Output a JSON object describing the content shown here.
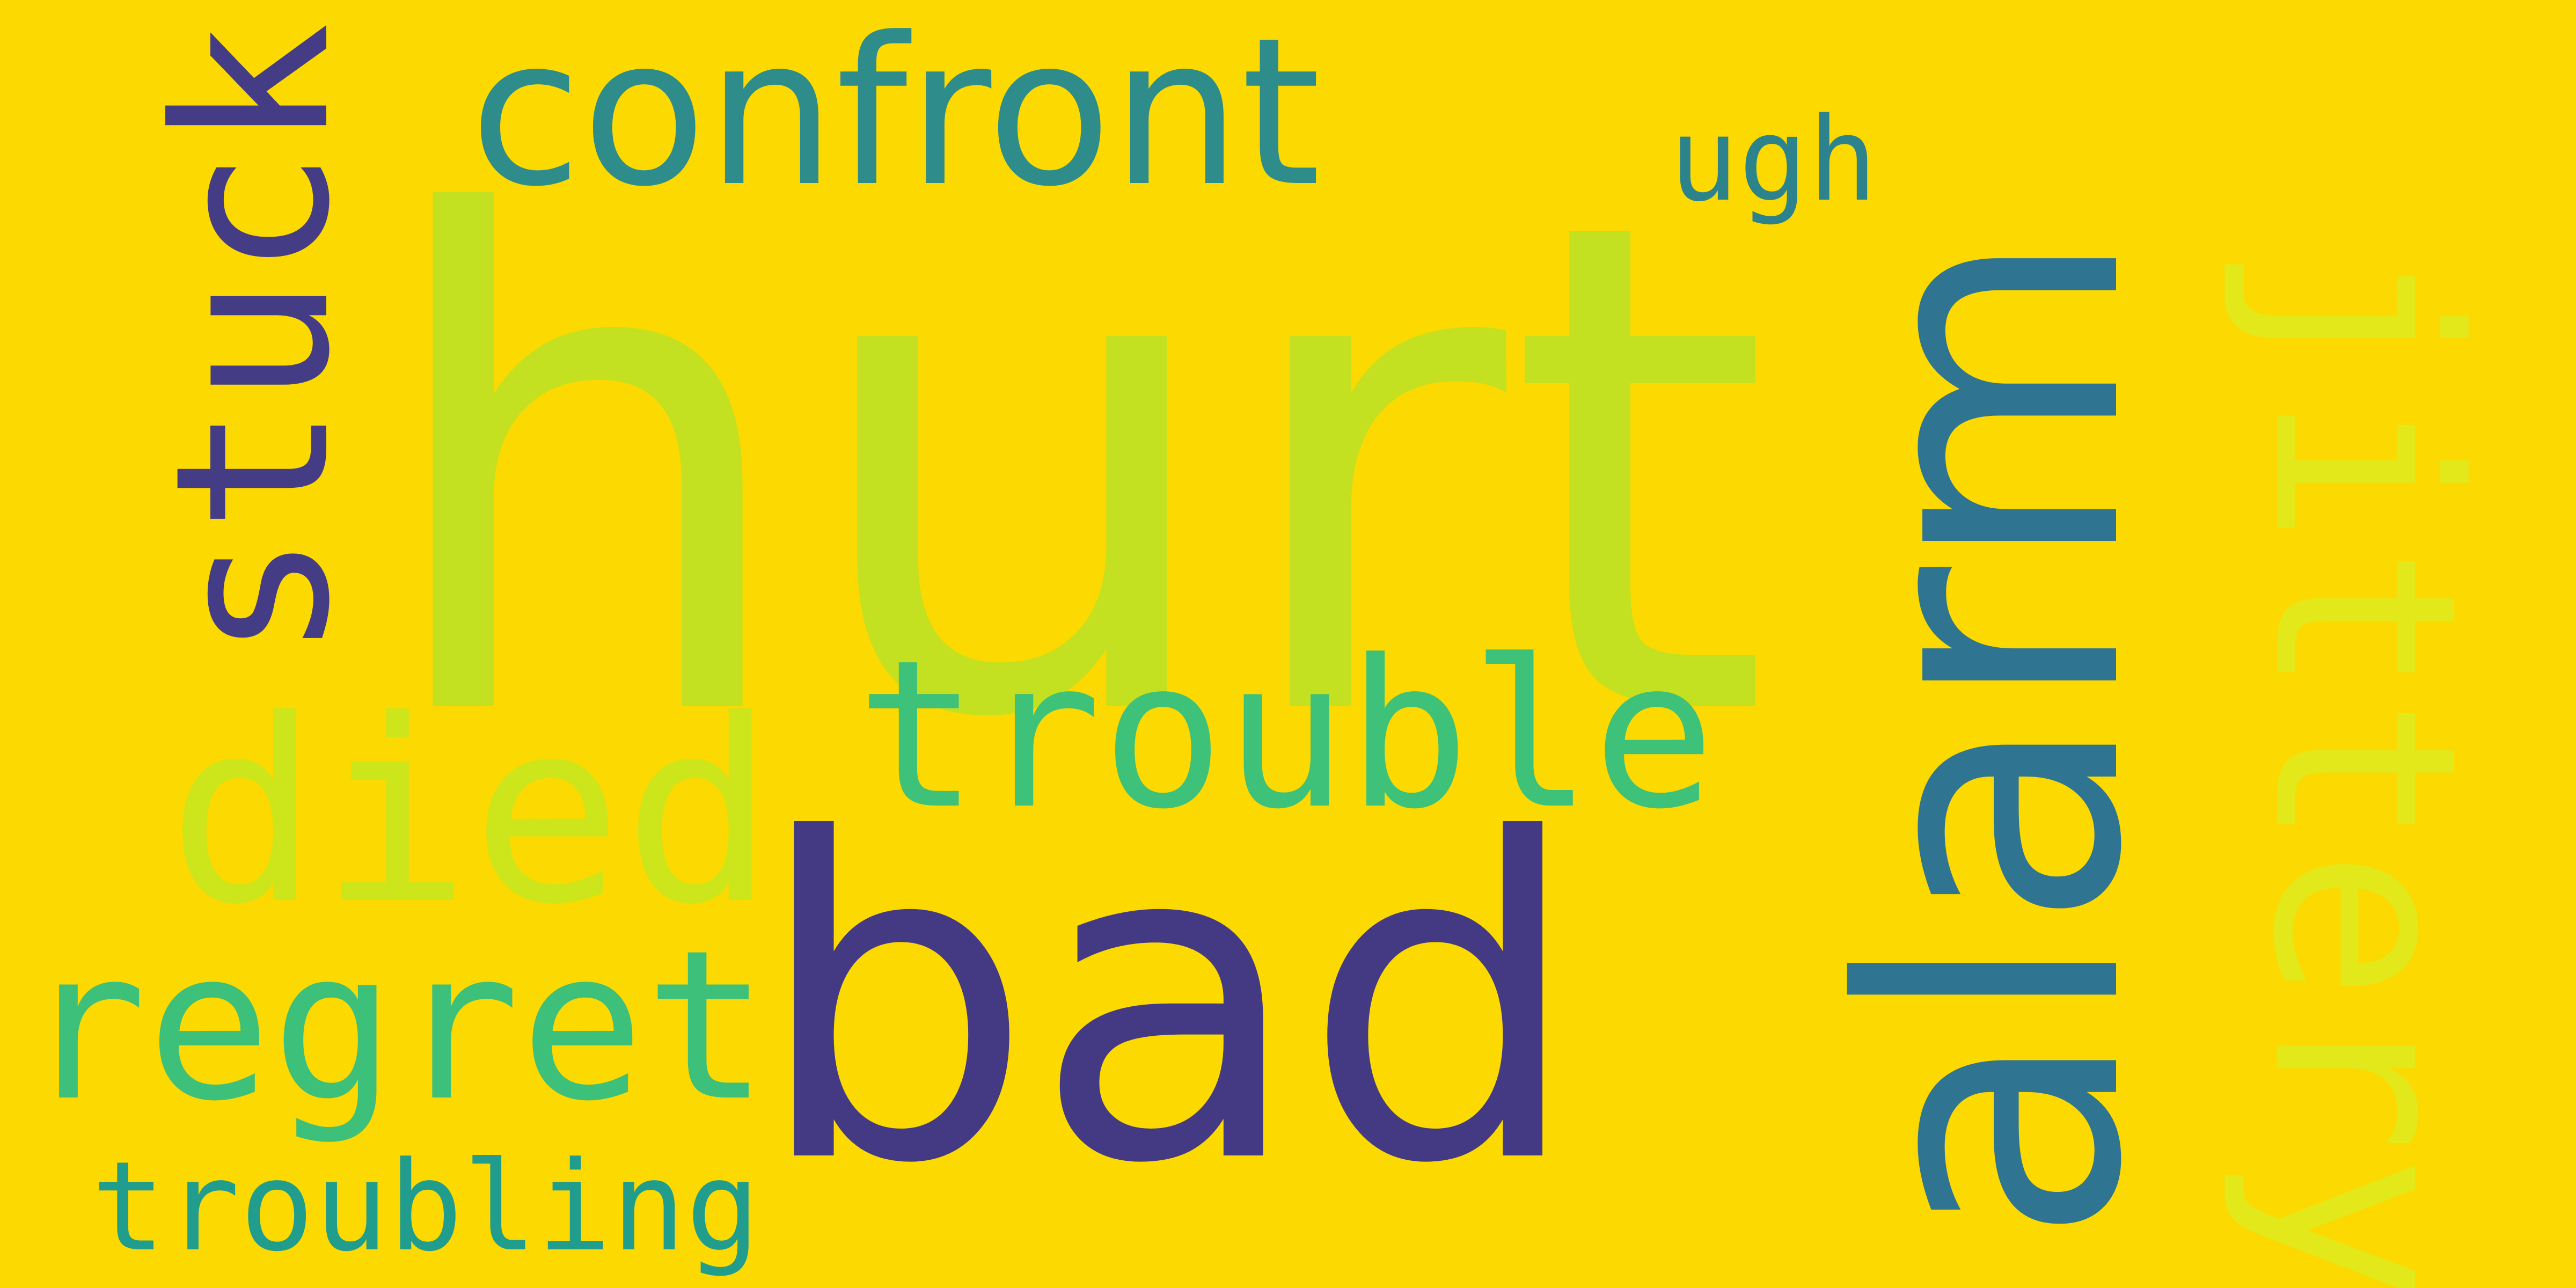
{
  "background_color": "#fcd900",
  "words": {
    "hurt": "hurt",
    "bad": "bad",
    "alarm": "alarm",
    "confront": "confront",
    "trouble": "trouble",
    "died": "died",
    "regret": "regret",
    "troubling": "troubling",
    "stuck": "stuck",
    "ugh": "ugh",
    "jittery": "jittery"
  },
  "colors": {
    "hurt": "#c3e021",
    "bad": "#433a83",
    "alarm": "#2f7490",
    "confront": "#2e8c8a",
    "trouble": "#3ec178",
    "died": "#cde51b",
    "regret": "#3dc07a",
    "troubling": "#219d8d",
    "stuck": "#443d85",
    "ugh": "#2c838c",
    "jittery": "#e2e81a"
  }
}
